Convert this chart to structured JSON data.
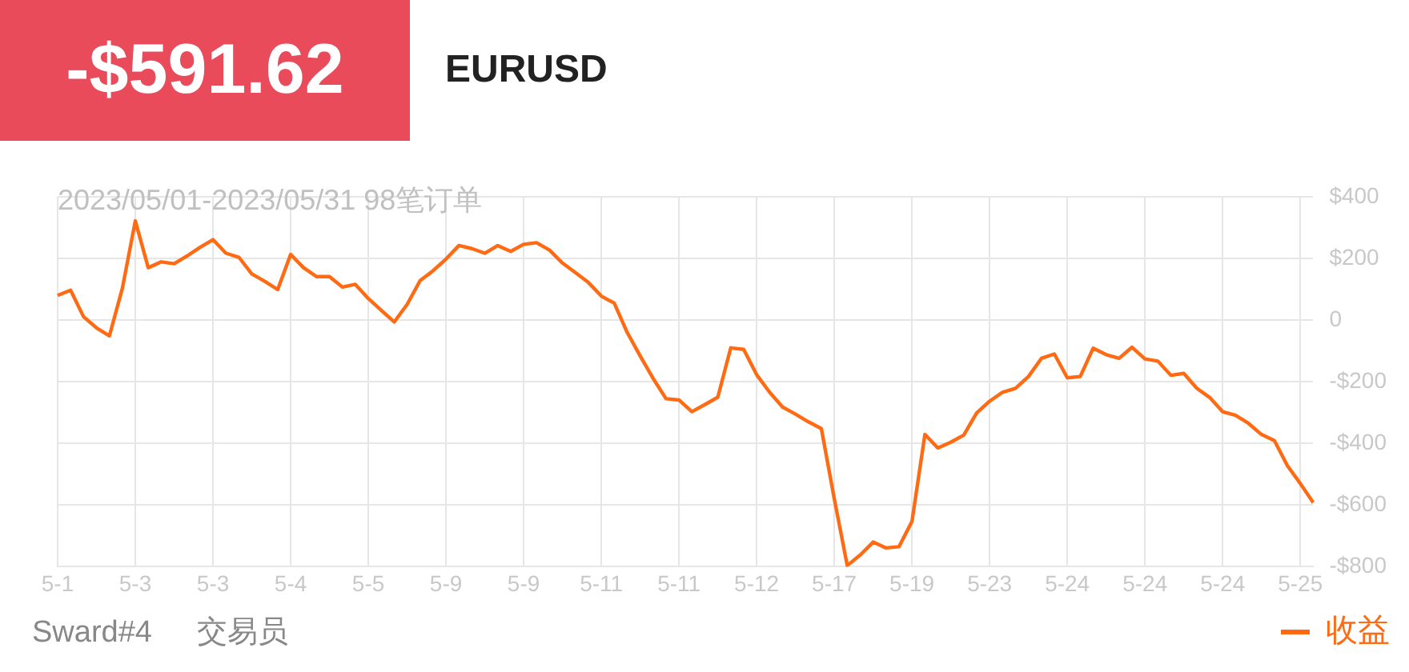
{
  "chart_data": {
    "type": "line",
    "title": "EURUSD",
    "subtitle": "2023/05/01-2023/05/31 98笔订单",
    "annotations": [
      "-$591.62",
      "Sward#4",
      "交易员"
    ],
    "categories": [
      "5-1",
      null,
      null,
      null,
      null,
      null,
      "5-3",
      null,
      null,
      null,
      null,
      null,
      "5-3",
      null,
      null,
      null,
      null,
      null,
      "5-4",
      null,
      null,
      null,
      null,
      null,
      "5-5",
      null,
      null,
      null,
      null,
      null,
      "5-9",
      null,
      null,
      null,
      null,
      null,
      "5-9",
      null,
      null,
      null,
      null,
      null,
      "5-11",
      null,
      null,
      null,
      null,
      null,
      "5-11",
      null,
      null,
      null,
      null,
      null,
      "5-12",
      null,
      null,
      null,
      null,
      null,
      "5-17",
      null,
      null,
      null,
      null,
      null,
      "5-19",
      null,
      null,
      null,
      null,
      null,
      "5-23",
      null,
      null,
      null,
      null,
      null,
      "5-24",
      null,
      null,
      null,
      null,
      null,
      "5-24",
      null,
      null,
      null,
      null,
      null,
      "5-24",
      null,
      null,
      null,
      null,
      null,
      "5-25",
      null
    ],
    "series": [
      {
        "name": "收益",
        "color": "#ff6a13",
        "values": [
          80,
          97,
          11,
          -25,
          -51,
          103,
          322,
          170,
          189,
          183,
          208,
          236,
          261,
          217,
          204,
          150,
          126,
          99,
          213,
          170,
          141,
          141,
          107,
          116,
          70,
          32,
          -6,
          51,
          128,
          160,
          198,
          242,
          232,
          217,
          242,
          223,
          246,
          251,
          227,
          185,
          154,
          122,
          78,
          55,
          -40,
          -116,
          -189,
          -255,
          -259,
          -297,
          -274,
          -250,
          -90,
          -95,
          -177,
          -234,
          -282,
          -305,
          -330,
          -352,
          -580,
          -796,
          -762,
          -720,
          -739,
          -735,
          -653,
          -371,
          -415,
          -396,
          -373,
          -301,
          -263,
          -234,
          -221,
          -183,
          -124,
          -110,
          -187,
          -183,
          -91,
          -112,
          -124,
          -88,
          -126,
          -133,
          -179,
          -173,
          -221,
          -251,
          -297,
          -309,
          -335,
          -371,
          -391,
          -472,
          -530,
          -592
        ]
      }
    ],
    "ylim": [
      -800,
      400
    ],
    "yticks": [
      {
        "value": -800,
        "label": "-$800"
      },
      {
        "value": -600,
        "label": "-$600"
      },
      {
        "value": -400,
        "label": "-$400"
      },
      {
        "value": -200,
        "label": "-$200"
      },
      0,
      {
        "value": 200,
        "label": "$200"
      },
      {
        "value": 400,
        "label": "$400"
      }
    ],
    "grid": true,
    "legend": "bottom right",
    "marker": "none",
    "line_style": "solid"
  }
}
